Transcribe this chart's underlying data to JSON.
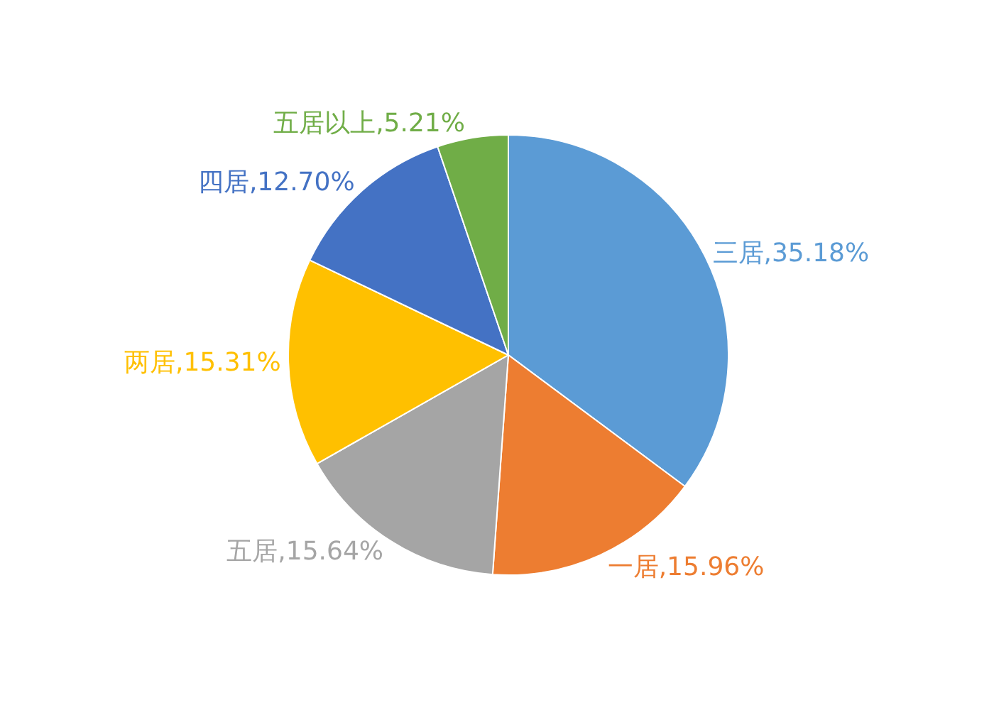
{
  "chart_data": {
    "type": "pie",
    "categories": [
      "三居",
      "一居",
      "五居",
      "两居",
      "四居",
      "五居以上"
    ],
    "values": [
      35.18,
      15.96,
      15.64,
      15.31,
      12.7,
      5.21
    ],
    "value_labels": [
      "35.18%",
      "15.96%",
      "15.64%",
      "15.31%",
      "12.70%",
      "5.21%"
    ],
    "colors": [
      "#5b9bd5",
      "#ed7d31",
      "#a5a5a5",
      "#ffc000",
      "#4472c4",
      "#70ad47"
    ],
    "legend": false
  }
}
